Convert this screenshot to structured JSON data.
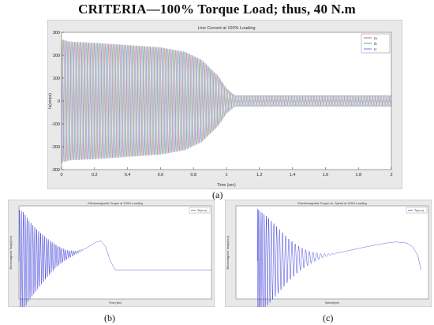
{
  "page": {
    "title": "CRITERIA—100% Torque Load; thus, 40 N.m",
    "labels": [
      "(a)",
      "(b)",
      "(c)"
    ]
  },
  "chart_data": [
    {
      "id": "a",
      "type": "line",
      "title": "Line Current at 100% Loading",
      "xlabel": "Time (sec)",
      "ylabel": "Ia(amps)",
      "xlim": [
        0,
        2
      ],
      "ylim": [
        -300,
        300
      ],
      "xticks": [
        "0",
        "0.2",
        "0.4",
        "0.6",
        "0.8",
        "1",
        "1.2",
        "1.4",
        "1.6",
        "1.8",
        "2"
      ],
      "yticks": [
        "300",
        "200",
        "100",
        "0",
        "-100",
        "-200",
        "-300"
      ],
      "legend": [
        "Ia",
        "Ib",
        "Ic"
      ],
      "legend_position": "top-right",
      "colors": [
        "#d6336c",
        "#2ca02c",
        "#3b5bdb"
      ],
      "envelope": {
        "t": [
          0,
          0.05,
          0.2,
          0.4,
          0.6,
          0.75,
          0.85,
          0.95,
          1.0,
          1.05,
          2.0
        ],
        "amp": [
          270,
          260,
          255,
          245,
          235,
          215,
          180,
          110,
          55,
          25,
          25
        ]
      }
    },
    {
      "id": "b",
      "type": "line",
      "title": "Electromagnetic Torque at 100% Loading",
      "xlabel": "Time (sec)",
      "ylabel": "Electromagnetic Torque(N.m)",
      "legend": [
        "Te(n.m)"
      ],
      "legend_position": "top-right",
      "color": "#2b2bd6",
      "xlim": [
        0,
        2
      ],
      "ylim": [
        -60,
        260
      ],
      "envelope": {
        "t": [
          0,
          0.05,
          0.1,
          0.2,
          0.3,
          0.4,
          0.5,
          0.6,
          0.7,
          0.8,
          0.85,
          0.9,
          0.95,
          1.0,
          2.0
        ],
        "mean": [
          70,
          70,
          72,
          75,
          82,
          88,
          92,
          100,
          115,
          135,
          140,
          120,
          70,
          40,
          40
        ],
        "amp": [
          180,
          170,
          140,
          100,
          65,
          35,
          15,
          5,
          0,
          0,
          0,
          0,
          0,
          0,
          0
        ]
      }
    },
    {
      "id": "c",
      "type": "line",
      "title": "Electromagnetic Torque vs. Speed at 100% Loading",
      "xlabel": "Speed(rpm)",
      "ylabel": "Electromagnetic Torque(N.m)",
      "legend": [
        "Te(n.m)"
      ],
      "legend_position": "top-right",
      "color": "#2b2bd6",
      "xlim": [
        -200,
        1600
      ],
      "ylim": [
        -60,
        260
      ],
      "curve": {
        "speed": [
          0,
          100,
          200,
          300,
          400,
          500,
          600,
          700,
          800,
          900,
          1000,
          1100,
          1200,
          1300,
          1400,
          1450,
          1500,
          1530
        ],
        "mean": [
          70,
          70,
          72,
          74,
          78,
          82,
          88,
          94,
          102,
          110,
          118,
          125,
          132,
          136,
          132,
          120,
          90,
          40
        ],
        "amp": [
          180,
          150,
          110,
          70,
          40,
          20,
          8,
          2,
          0,
          0,
          0,
          0,
          0,
          0,
          0,
          0,
          0,
          0
        ]
      }
    }
  ]
}
